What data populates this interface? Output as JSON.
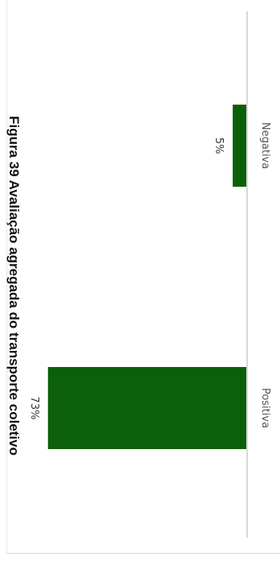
{
  "chart_data": {
    "type": "bar",
    "orientation": "rotated-90-clockwise",
    "title": "Figura 39 Avaliação agregada do transporte coletivo",
    "categories": [
      "Positiva",
      "Negativa"
    ],
    "values": [
      73,
      5
    ],
    "data_labels": [
      "73%",
      "5%"
    ],
    "ylim": [
      0,
      75
    ],
    "grid": false,
    "colors": {
      "bar": "#0b6009",
      "axis": "#cccccc"
    }
  }
}
